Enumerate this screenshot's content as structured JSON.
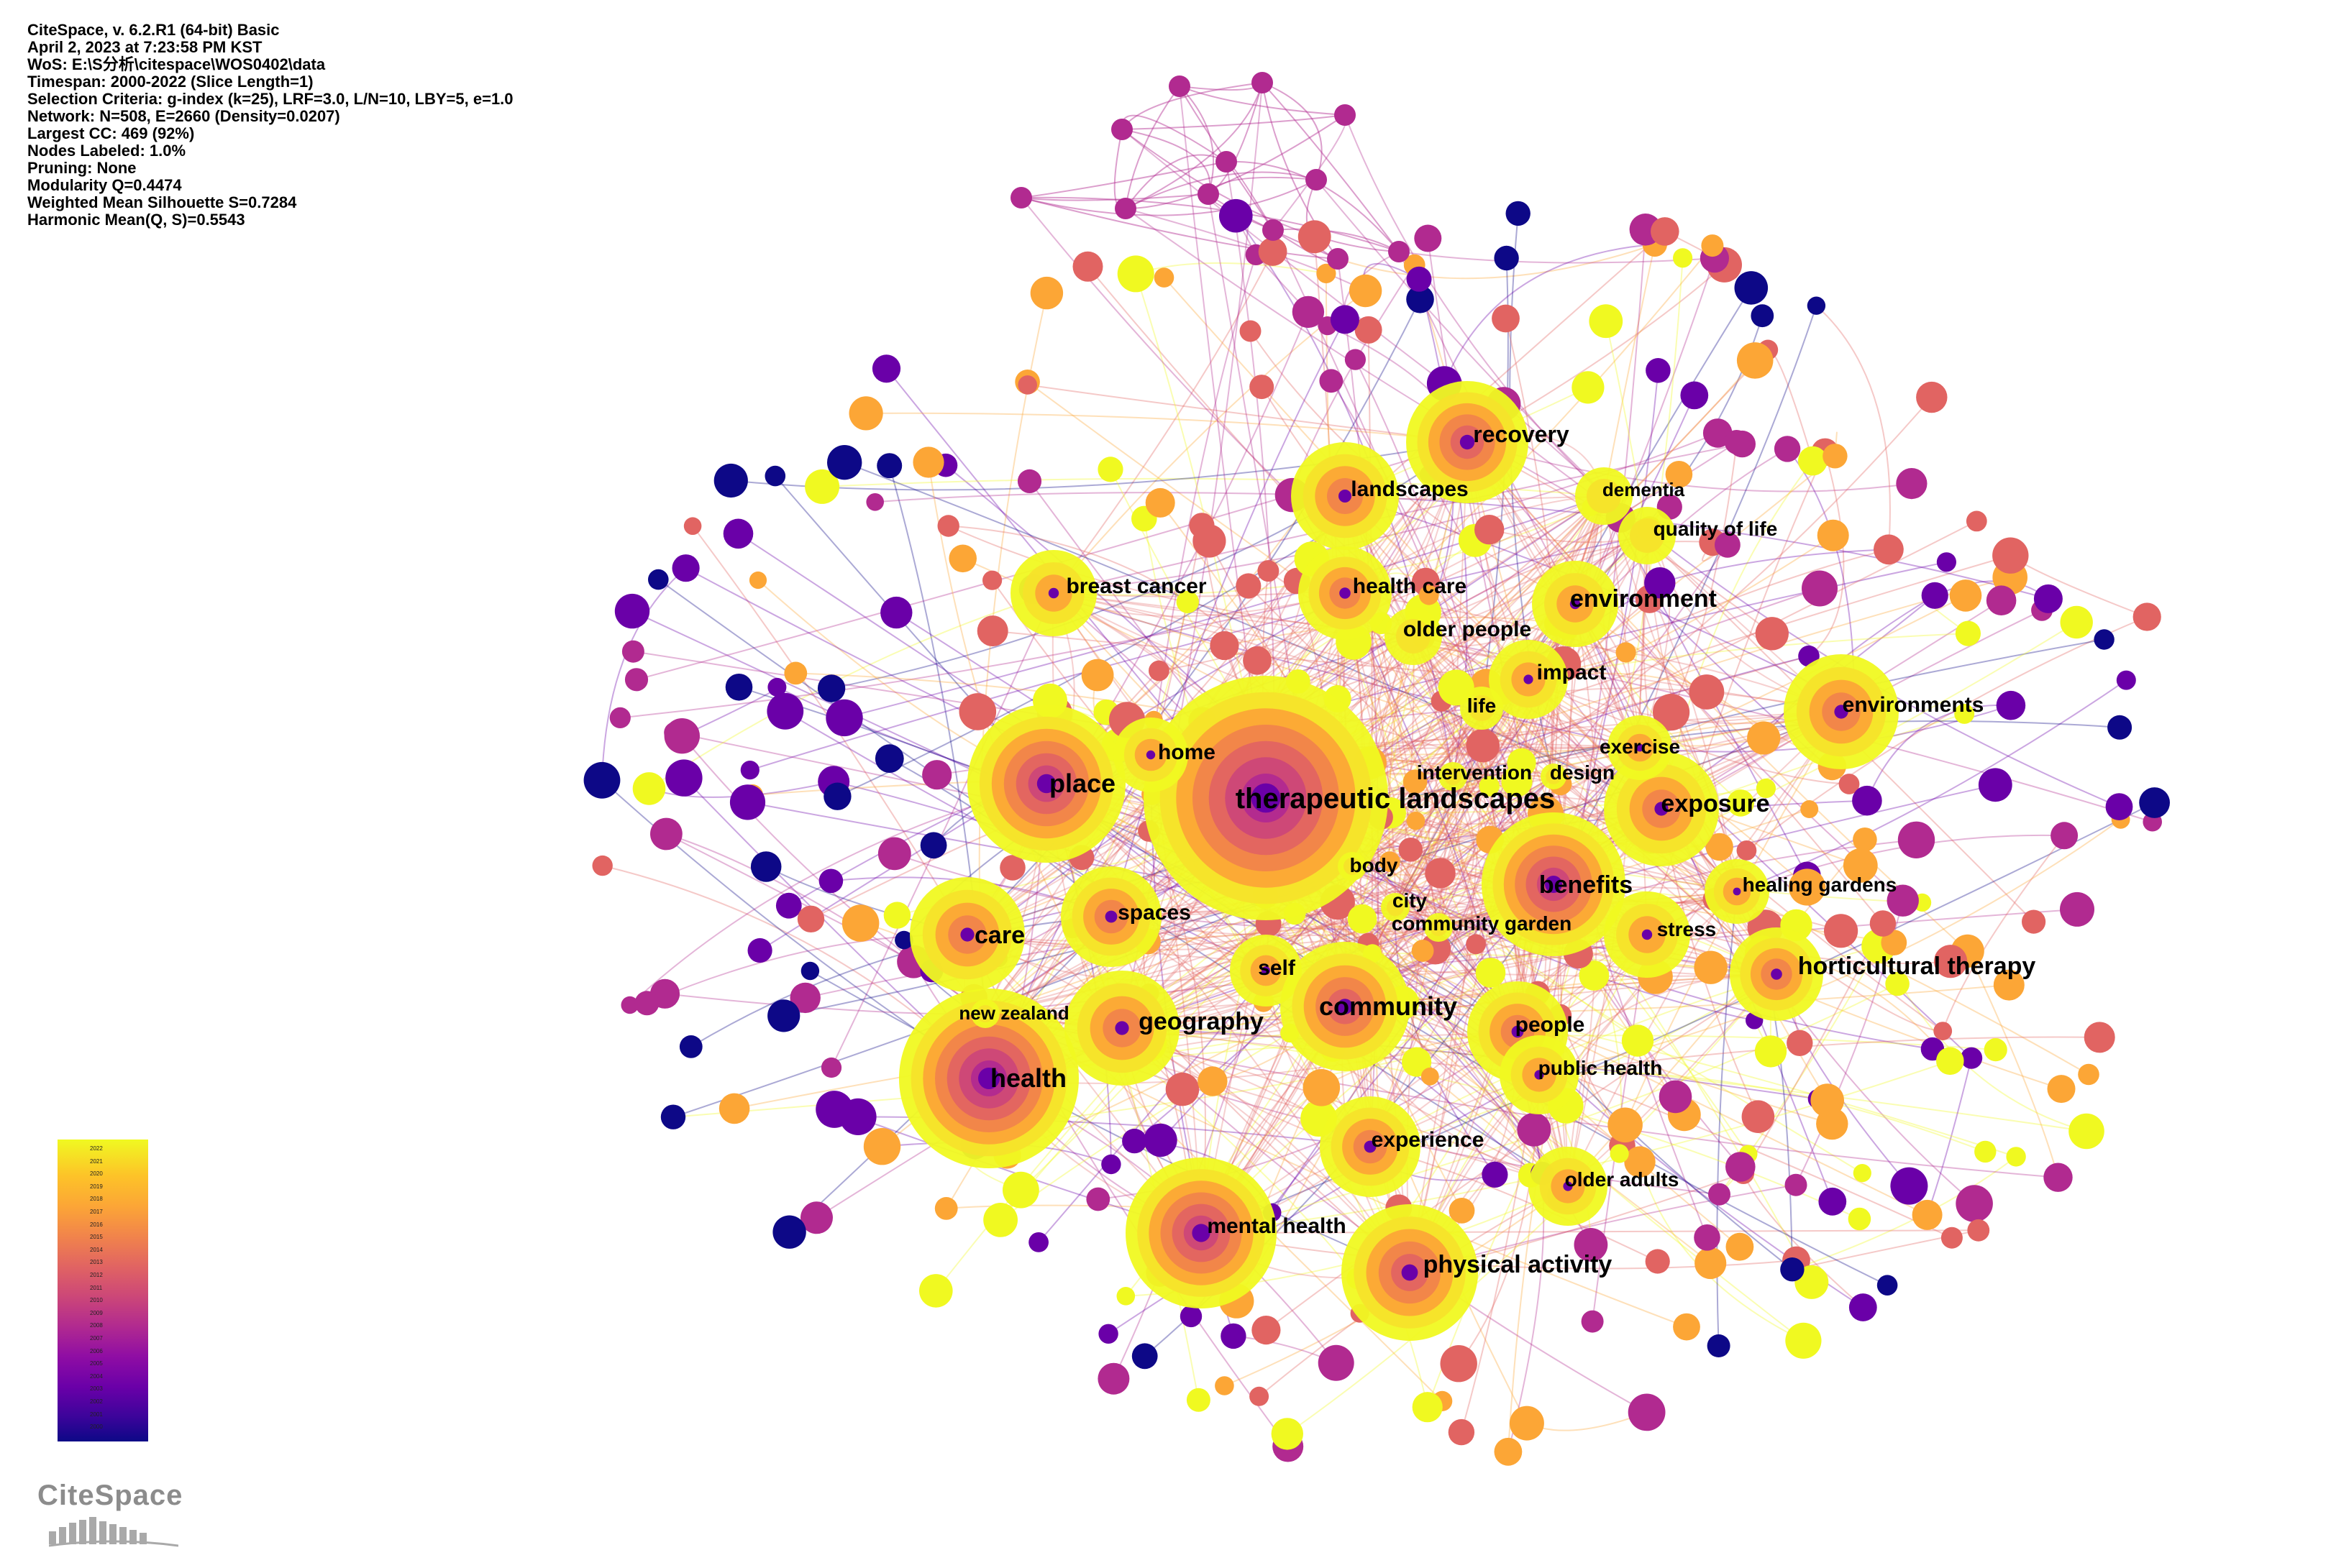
{
  "info": {
    "lines": [
      "CiteSpace, v. 6.2.R1 (64-bit) Basic",
      "April 2, 2023 at 7:23:58 PM KST",
      "WoS: E:\\S分析\\citespace\\WOS0402\\data",
      "Timespan: 2000-2022 (Slice Length=1)",
      "Selection Criteria: g-index (k=25), LRF=3.0, L/N=10, LBY=5, e=1.0",
      "Network: N=508, E=2660 (Density=0.0207)",
      "Largest CC: 469 (92%)",
      "Nodes Labeled: 1.0%",
      "Pruning: None",
      "Modularity Q=0.4474",
      "Weighted Mean Silhouette S=0.7284",
      "Harmonic Mean(Q, S)=0.5543"
    ]
  },
  "keywords": [
    "therapeutic landscapes",
    "place",
    "home",
    "care",
    "spaces",
    "health",
    "new zealand",
    "geography",
    "self",
    "community",
    "body",
    "city",
    "community garden",
    "benefits",
    "stress",
    "exposure",
    "horticultural therapy",
    "environments",
    "healing gardens",
    "exercise",
    "intervention",
    "design",
    "life",
    "impact",
    "environment",
    "older people",
    "health care",
    "breast cancer",
    "landscapes",
    "recovery",
    "dementia",
    "quality of life",
    "people",
    "public health",
    "experience",
    "older adults",
    "mental health",
    "physical activity"
  ],
  "legend": {
    "years": [
      "2022",
      "2021",
      "2020",
      "2019",
      "2018",
      "2017",
      "2016",
      "2015",
      "2014",
      "2013",
      "2012",
      "2011",
      "2010",
      "2009",
      "2008",
      "2007",
      "2006",
      "2005",
      "2004",
      "2003",
      "2002",
      "2001",
      "2000"
    ]
  },
  "logo": {
    "text": "CiteSpace"
  },
  "colors": {
    "yellow": "#f0f921",
    "orange": "#fca636",
    "coral": "#e16462",
    "magenta": "#b12a90",
    "purple": "#6a00a8",
    "navy": "#0d0887"
  }
}
